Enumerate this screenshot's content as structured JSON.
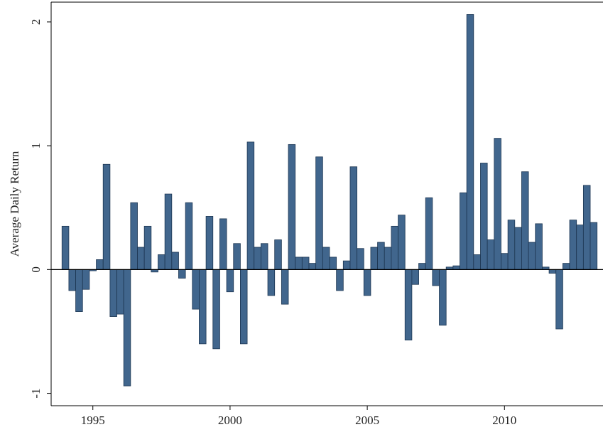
{
  "chart_data": {
    "type": "bar",
    "y_label": "Average Daily Return",
    "x": [
      1994,
      1994.25,
      1994.5,
      1994.75,
      1995,
      1995.25,
      1995.5,
      1995.75,
      1996,
      1996.25,
      1996.5,
      1996.75,
      1997,
      1997.25,
      1997.5,
      1997.75,
      1998,
      1998.25,
      1998.5,
      1998.75,
      1999,
      1999.25,
      1999.5,
      1999.75,
      2000,
      2000.25,
      2000.5,
      2000.75,
      2001,
      2001.25,
      2001.5,
      2001.75,
      2002,
      2002.25,
      2002.5,
      2002.75,
      2003,
      2003.25,
      2003.5,
      2003.75,
      2004,
      2004.25,
      2004.5,
      2004.75,
      2005,
      2005.25,
      2005.5,
      2005.75,
      2006,
      2006.25,
      2006.5,
      2006.75,
      2007,
      2007.25,
      2007.5,
      2007.75,
      2008,
      2008.25,
      2008.5,
      2008.75,
      2009,
      2009.25,
      2009.5,
      2009.75,
      2010,
      2010.25,
      2010.5,
      2010.75,
      2011,
      2011.25,
      2011.5,
      2011.75,
      2012,
      2012.25,
      2012.5,
      2012.75,
      2013,
      2013.25
    ],
    "values": [
      0.35,
      -0.17,
      -0.34,
      -0.16,
      -0.01,
      0.08,
      0.85,
      -0.38,
      -0.36,
      -0.94,
      0.54,
      0.18,
      0.35,
      -0.02,
      0.12,
      0.61,
      0.14,
      -0.07,
      0.54,
      -0.32,
      -0.6,
      0.43,
      -0.64,
      0.41,
      -0.18,
      0.21,
      -0.6,
      1.03,
      0.18,
      0.21,
      -0.21,
      0.24,
      -0.28,
      1.01,
      0.1,
      0.1,
      0.05,
      0.91,
      0.18,
      0.1,
      -0.17,
      0.07,
      0.83,
      0.17,
      -0.21,
      0.18,
      0.22,
      0.18,
      0.35,
      0.44,
      -0.57,
      -0.12,
      0.05,
      0.58,
      -0.13,
      -0.45,
      0.02,
      0.03,
      0.62,
      2.06,
      0.12,
      0.86,
      0.24,
      1.06,
      0.13,
      0.4,
      0.34,
      0.79,
      0.22,
      0.37,
      0.02,
      -0.03,
      -0.48,
      0.05,
      0.4,
      0.36,
      0.68,
      0.38
    ],
    "color": "#41668d",
    "xlim": [
      1993.48,
      2013.59
    ],
    "xticks": [
      1995,
      2000,
      2005,
      2010
    ],
    "ylim": [
      -1.1,
      2.16
    ],
    "yticks": [
      -1,
      0,
      1,
      2
    ]
  }
}
